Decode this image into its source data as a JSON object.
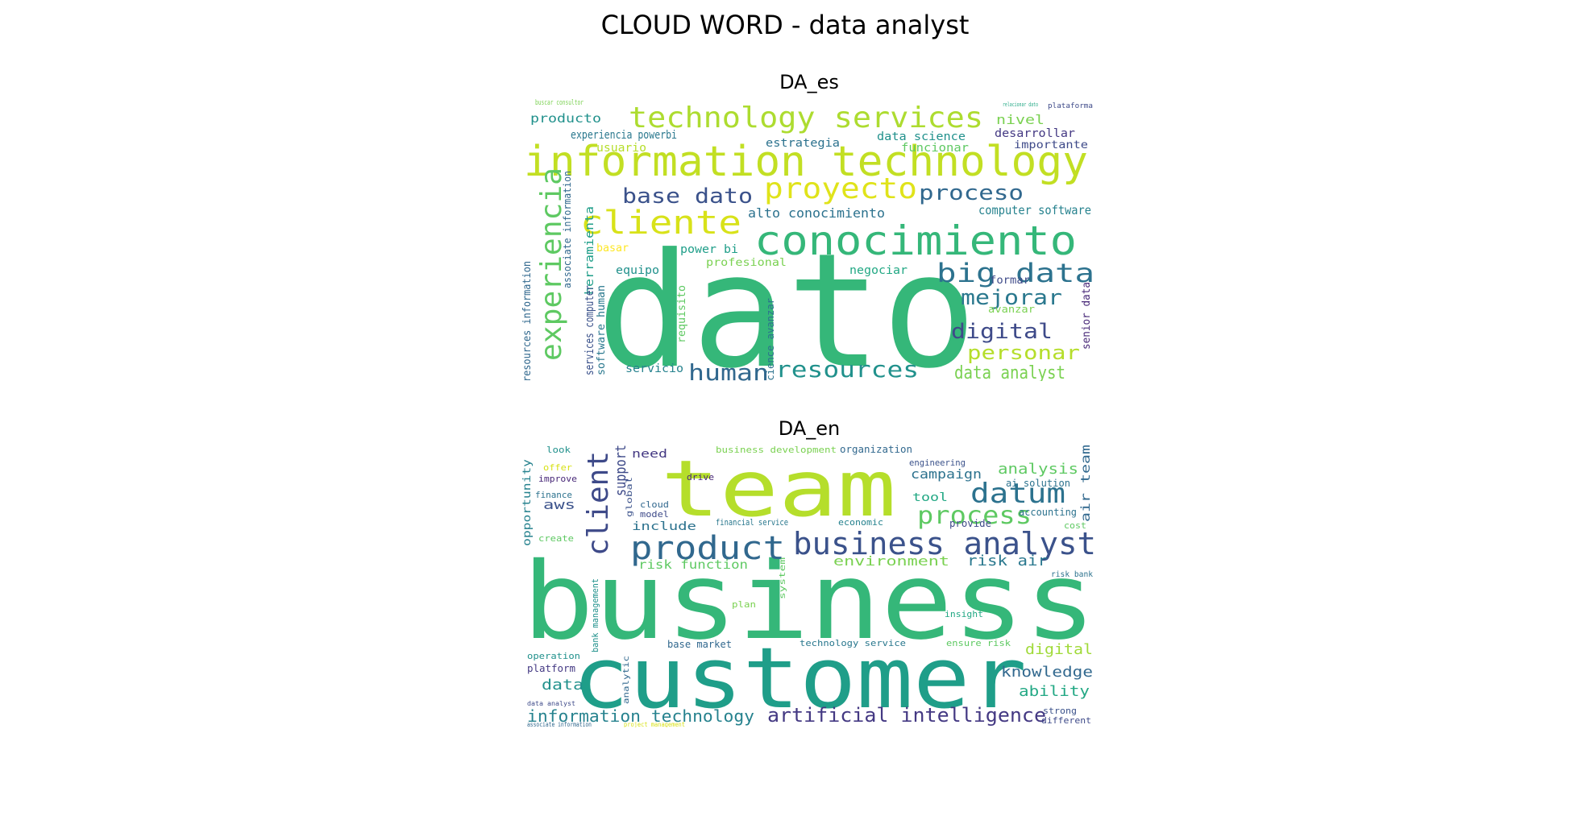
{
  "figure": {
    "title": "CLOUD WORD - data analyst"
  },
  "clouds": [
    {
      "subtitle": "DA_es",
      "words": [
        {
          "text": "dato",
          "color": "#35b779"
        },
        {
          "text": "information technology",
          "color": "#c2df23"
        },
        {
          "text": "conocimiento",
          "color": "#35b779"
        },
        {
          "text": "technology services",
          "color": "#addc30"
        },
        {
          "text": "experiencia",
          "color": "#5ec962"
        },
        {
          "text": "cliente",
          "color": "#d8e219"
        },
        {
          "text": "proyecto",
          "color": "#e0e31a"
        },
        {
          "text": "big data",
          "color": "#2c728e"
        },
        {
          "text": "base dato",
          "color": "#3b528b"
        },
        {
          "text": "proceso",
          "color": "#31688e"
        },
        {
          "text": "human",
          "color": "#31688e"
        },
        {
          "text": "resources",
          "color": "#21918c"
        },
        {
          "text": "digital",
          "color": "#3e4a89"
        },
        {
          "text": "mejorar",
          "color": "#2a788e"
        },
        {
          "text": "personar",
          "color": "#b5de2b"
        },
        {
          "text": "data analyst",
          "color": "#7ad151"
        },
        {
          "text": "producto",
          "color": "#21918c"
        },
        {
          "text": "nivel",
          "color": "#7ad151"
        },
        {
          "text": "desarrollar",
          "color": "#443983"
        },
        {
          "text": "importante",
          "color": "#3e4a89"
        },
        {
          "text": "estrategia",
          "color": "#2c728e"
        },
        {
          "text": "data science",
          "color": "#21918c"
        },
        {
          "text": "funcionar",
          "color": "#5ec962"
        },
        {
          "text": "experiencia powerbi",
          "color": "#2a788e"
        },
        {
          "text": "usuario",
          "color": "#b5de2b"
        },
        {
          "text": "alto conocimiento",
          "color": "#2c728e"
        },
        {
          "text": "computer software",
          "color": "#26828e"
        },
        {
          "text": "power bi",
          "color": "#1f9e89"
        },
        {
          "text": "profesional",
          "color": "#7ad151"
        },
        {
          "text": "equipo",
          "color": "#21918c"
        },
        {
          "text": "negociar",
          "color": "#22a884"
        },
        {
          "text": "formar",
          "color": "#3e4a89"
        },
        {
          "text": "avanzar",
          "color": "#7ad151"
        },
        {
          "text": "servicio",
          "color": "#26828e"
        },
        {
          "text": "herramienta",
          "color": "#1f9e89"
        },
        {
          "text": "associate information",
          "color": "#31688e"
        },
        {
          "text": "services computer",
          "color": "#3b528b"
        },
        {
          "text": "software human",
          "color": "#2a788e"
        },
        {
          "text": "resources information",
          "color": "#31688e"
        },
        {
          "text": "requisito",
          "color": "#5ec962"
        },
        {
          "text": "science avanzar",
          "color": "#2c728e"
        },
        {
          "text": "senior data",
          "color": "#482878"
        },
        {
          "text": "basar",
          "color": "#fde725"
        },
        {
          "text": "buscar consultor",
          "color": "#7ad151"
        },
        {
          "text": "plataforma",
          "color": "#3e4a89"
        },
        {
          "text": "relacionar dato",
          "color": "#22a884"
        }
      ]
    },
    {
      "subtitle": "DA_en",
      "words": [
        {
          "text": "business",
          "color": "#35b779"
        },
        {
          "text": "customer",
          "color": "#1f9e89"
        },
        {
          "text": "team",
          "color": "#b5de2b"
        },
        {
          "text": "business analyst",
          "color": "#3b528b"
        },
        {
          "text": "product",
          "color": "#31688e"
        },
        {
          "text": "client",
          "color": "#3e4a89"
        },
        {
          "text": "datum",
          "color": "#2c728e"
        },
        {
          "text": "process",
          "color": "#5ec962"
        },
        {
          "text": "artificial intelligence",
          "color": "#443983"
        },
        {
          "text": "information technology",
          "color": "#26828e"
        },
        {
          "text": "knowledge",
          "color": "#31688e"
        },
        {
          "text": "ability",
          "color": "#22a884"
        },
        {
          "text": "analysis",
          "color": "#5ec962"
        },
        {
          "text": "campaign",
          "color": "#2c728e"
        },
        {
          "text": "environment",
          "color": "#7ad151"
        },
        {
          "text": "risk air",
          "color": "#2a788e"
        },
        {
          "text": "risk function",
          "color": "#5ec962"
        },
        {
          "text": "support",
          "color": "#3e4a89"
        },
        {
          "text": "need",
          "color": "#443983"
        },
        {
          "text": "digital",
          "color": "#a0da39"
        },
        {
          "text": "data",
          "color": "#21918c"
        },
        {
          "text": "aws",
          "color": "#3b528b"
        },
        {
          "text": "include",
          "color": "#2c728e"
        },
        {
          "text": "tool",
          "color": "#22a884"
        },
        {
          "text": "air team",
          "color": "#31688e"
        },
        {
          "text": "opportunity",
          "color": "#26828e"
        },
        {
          "text": "ai solution",
          "color": "#2c728e"
        },
        {
          "text": "business development",
          "color": "#7ad151"
        },
        {
          "text": "organization",
          "color": "#31688e"
        },
        {
          "text": "engineering",
          "color": "#3b528b"
        },
        {
          "text": "financial service",
          "color": "#2a788e"
        },
        {
          "text": "accounting",
          "color": "#2c728e"
        },
        {
          "text": "provide",
          "color": "#3e4a89"
        },
        {
          "text": "look",
          "color": "#21918c"
        },
        {
          "text": "offer",
          "color": "#d8e219"
        },
        {
          "text": "improve",
          "color": "#482878"
        },
        {
          "text": "finance",
          "color": "#2c728e"
        },
        {
          "text": "create",
          "color": "#5ec962"
        },
        {
          "text": "operation",
          "color": "#21918c"
        },
        {
          "text": "platform",
          "color": "#443983"
        },
        {
          "text": "base market",
          "color": "#31688e"
        },
        {
          "text": "technology service",
          "color": "#2a788e"
        },
        {
          "text": "ensure risk",
          "color": "#5ec962"
        },
        {
          "text": "different",
          "color": "#3e4a89"
        },
        {
          "text": "strong",
          "color": "#3b528b"
        },
        {
          "text": "model",
          "color": "#3e4a89"
        },
        {
          "text": "cloud",
          "color": "#31688e"
        },
        {
          "text": "drive",
          "color": "#482878"
        },
        {
          "text": "plan",
          "color": "#7ad151"
        },
        {
          "text": "insight",
          "color": "#22a884"
        },
        {
          "text": "risk bank",
          "color": "#2c728e"
        },
        {
          "text": "cost",
          "color": "#5ec962"
        },
        {
          "text": "data analyst",
          "color": "#3e4a89"
        },
        {
          "text": "associate information",
          "color": "#31688e"
        },
        {
          "text": "project management",
          "color": "#d8e219"
        },
        {
          "text": "bank management",
          "color": "#21918c"
        },
        {
          "text": "economic",
          "color": "#26828e"
        },
        {
          "text": "global",
          "color": "#3b528b"
        },
        {
          "text": "system",
          "color": "#5ec962"
        },
        {
          "text": "analytic",
          "color": "#31688e"
        }
      ]
    }
  ]
}
